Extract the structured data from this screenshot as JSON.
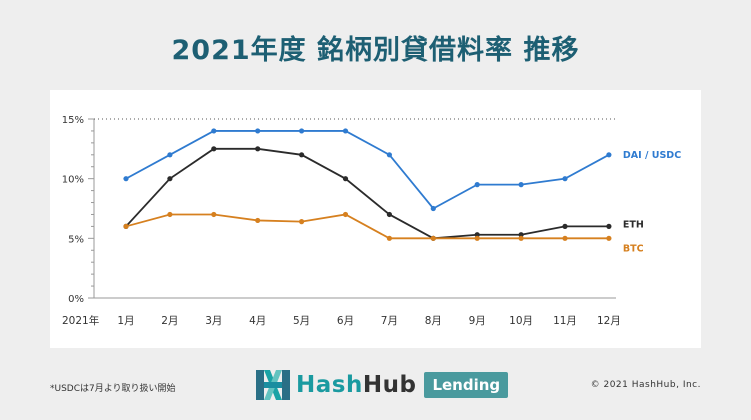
{
  "title": "2021年度 銘柄別貸借料率 推移",
  "footnote": "*USDCは7月より取り扱い開始",
  "copyright": "© 2021 HashHub, Inc.",
  "logo": {
    "part1": "Hash",
    "part2": "Hub",
    "badge": "Lending"
  },
  "colors": {
    "dai": "#2f7bd0",
    "eth": "#2b2b2b",
    "btc": "#d6801f"
  },
  "chart_data": {
    "type": "line",
    "year_label": "2021年",
    "categories": [
      "1月",
      "2月",
      "3月",
      "4月",
      "5月",
      "6月",
      "7月",
      "8月",
      "9月",
      "10月",
      "11月",
      "12月"
    ],
    "yticks": [
      "0%",
      "5%",
      "10%",
      "15%"
    ],
    "ylim": [
      0,
      15
    ],
    "grid": false,
    "legend": "end-of-line labels",
    "series": [
      {
        "name": "DAI / USDC",
        "color": "#2f7bd0",
        "values": [
          10,
          12,
          14,
          14,
          14,
          14,
          12,
          7.5,
          9.5,
          9.5,
          10,
          12
        ]
      },
      {
        "name": "ETH",
        "color": "#2b2b2b",
        "values": [
          6,
          10,
          12.5,
          12.5,
          12,
          10,
          7,
          5,
          5.3,
          5.3,
          6,
          6
        ]
      },
      {
        "name": "BTC",
        "color": "#d6801f",
        "values": [
          6,
          7,
          7,
          6.5,
          6.4,
          7,
          5,
          5,
          5,
          5,
          5,
          5
        ]
      }
    ]
  }
}
